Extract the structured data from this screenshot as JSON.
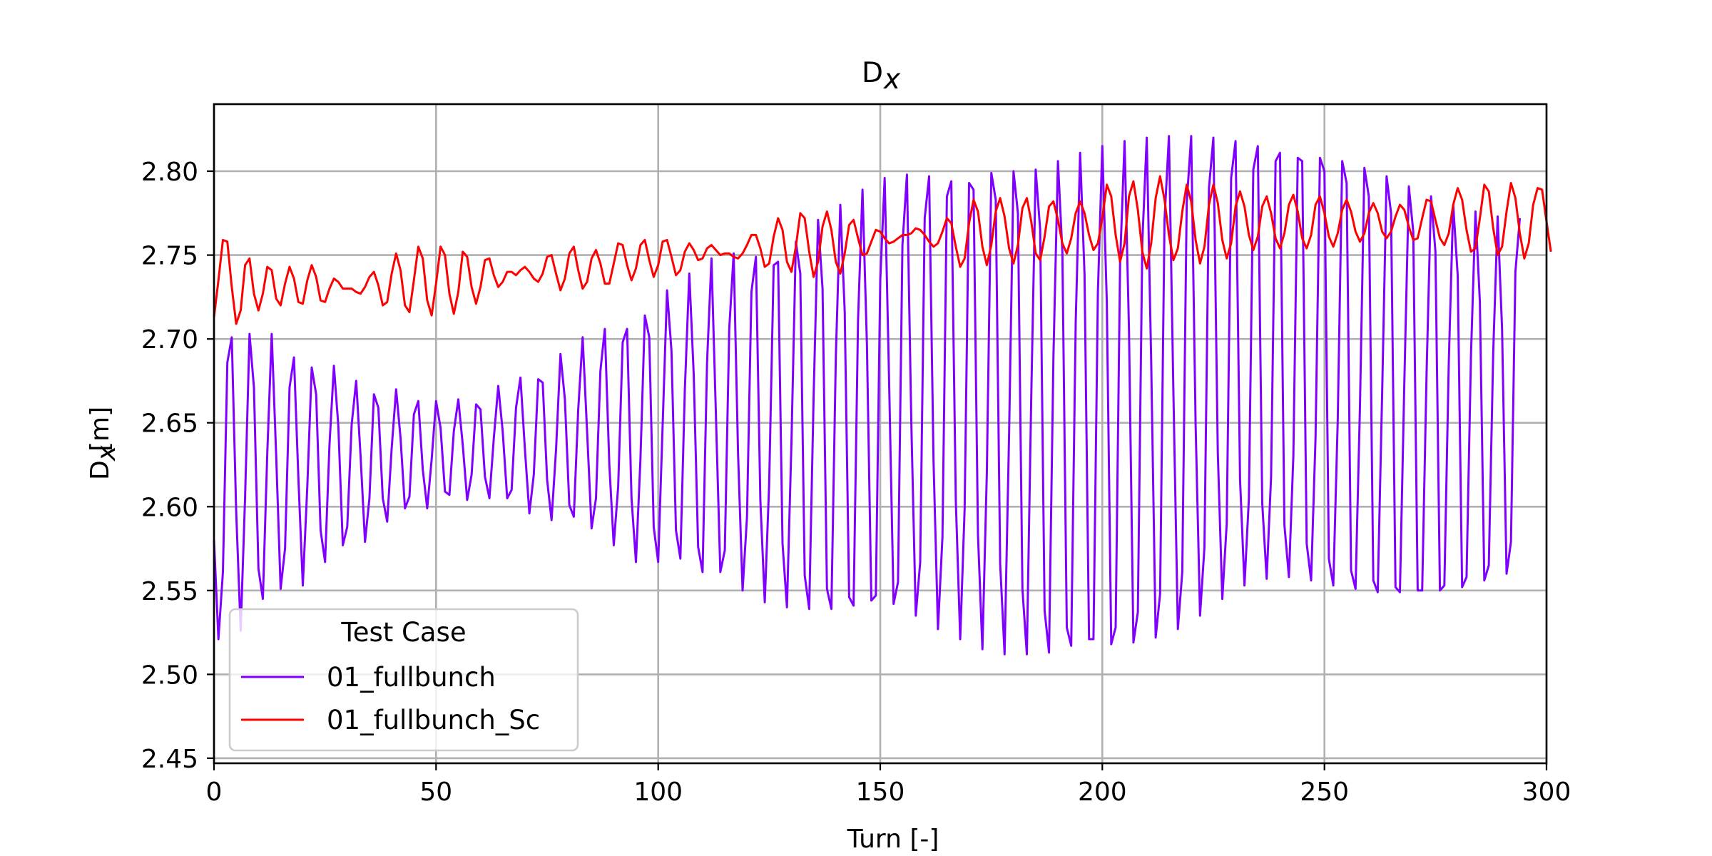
{
  "chart_data": {
    "type": "line",
    "title": "D",
    "title_subscript": "x",
    "xlabel": "Turn [-]",
    "ylabel": "D",
    "ylabel_subscript": "x",
    "ylabel_unit": " [m]",
    "xlim": [
      0,
      300
    ],
    "ylim": [
      2.447,
      2.84
    ],
    "x_ticks": [
      0,
      50,
      100,
      150,
      200,
      250,
      300
    ],
    "x_tick_labels": [
      "0",
      "50",
      "100",
      "150",
      "200",
      "250",
      "300"
    ],
    "y_ticks": [
      2.45,
      2.5,
      2.55,
      2.6,
      2.65,
      2.7,
      2.75,
      2.8
    ],
    "y_tick_labels": [
      "2.45",
      "2.50",
      "2.55",
      "2.60",
      "2.65",
      "2.70",
      "2.75",
      "2.80"
    ],
    "grid": true,
    "legend": {
      "title": "Test Case",
      "placement": "lower-left"
    },
    "x_start": 0,
    "x_step": 1,
    "series": [
      {
        "name": "01_fullbunch",
        "color": "#8000ff",
        "values": [
          2.58,
          2.521,
          2.561,
          2.686,
          2.701,
          2.597,
          2.526,
          2.606,
          2.703,
          2.671,
          2.563,
          2.545,
          2.632,
          2.703,
          2.63,
          2.551,
          2.575,
          2.671,
          2.689,
          2.617,
          2.553,
          2.612,
          2.683,
          2.667,
          2.586,
          2.567,
          2.637,
          2.684,
          2.648,
          2.577,
          2.588,
          2.649,
          2.675,
          2.63,
          2.579,
          2.605,
          2.667,
          2.659,
          2.605,
          2.591,
          2.635,
          2.67,
          2.641,
          2.599,
          2.606,
          2.655,
          2.663,
          2.622,
          2.599,
          2.628,
          2.663,
          2.647,
          2.609,
          2.607,
          2.645,
          2.664,
          2.637,
          2.604,
          2.619,
          2.661,
          2.658,
          2.618,
          2.605,
          2.641,
          2.672,
          2.645,
          2.605,
          2.61,
          2.659,
          2.677,
          2.634,
          2.596,
          2.619,
          2.676,
          2.674,
          2.616,
          2.592,
          2.634,
          2.691,
          2.664,
          2.601,
          2.594,
          2.658,
          2.701,
          2.645,
          2.587,
          2.605,
          2.681,
          2.706,
          2.625,
          2.577,
          2.612,
          2.698,
          2.706,
          2.605,
          2.567,
          2.628,
          2.714,
          2.701,
          2.588,
          2.567,
          2.648,
          2.729,
          2.693,
          2.586,
          2.569,
          2.669,
          2.739,
          2.679,
          2.576,
          2.561,
          2.686,
          2.748,
          2.655,
          2.561,
          2.574,
          2.706,
          2.751,
          2.631,
          2.55,
          2.594,
          2.728,
          2.749,
          2.604,
          2.543,
          2.614,
          2.744,
          2.746,
          2.578,
          2.54,
          2.638,
          2.758,
          2.739,
          2.559,
          2.539,
          2.666,
          2.771,
          2.73,
          2.551,
          2.539,
          2.689,
          2.78,
          2.716,
          2.546,
          2.541,
          2.712,
          2.789,
          2.697,
          2.544,
          2.547,
          2.735,
          2.796,
          2.673,
          2.542,
          2.555,
          2.756,
          2.798,
          2.649,
          2.535,
          2.567,
          2.772,
          2.797,
          2.627,
          2.527,
          2.582,
          2.785,
          2.794,
          2.604,
          2.521,
          2.599,
          2.793,
          2.789,
          2.583,
          2.515,
          2.62,
          2.799,
          2.783,
          2.566,
          2.512,
          2.643,
          2.8,
          2.775,
          2.551,
          2.512,
          2.666,
          2.801,
          2.765,
          2.538,
          2.513,
          2.69,
          2.806,
          2.752,
          2.528,
          2.517,
          2.71,
          2.811,
          2.738,
          2.521,
          2.521,
          2.728,
          2.815,
          2.722,
          2.518,
          2.528,
          2.745,
          2.818,
          2.705,
          2.519,
          2.537,
          2.758,
          2.82,
          2.687,
          2.522,
          2.548,
          2.771,
          2.821,
          2.667,
          2.527,
          2.561,
          2.781,
          2.821,
          2.649,
          2.535,
          2.576,
          2.79,
          2.82,
          2.632,
          2.545,
          2.59,
          2.796,
          2.818,
          2.616,
          2.553,
          2.605,
          2.801,
          2.815,
          2.602,
          2.557,
          2.618,
          2.806,
          2.811,
          2.589,
          2.558,
          2.63,
          2.808,
          2.806,
          2.578,
          2.556,
          2.641,
          2.808,
          2.8,
          2.569,
          2.553,
          2.651,
          2.806,
          2.793,
          2.562,
          2.551,
          2.66,
          2.802,
          2.785,
          2.556,
          2.549,
          2.668,
          2.797,
          2.775,
          2.552,
          2.549,
          2.674,
          2.791,
          2.764,
          2.55,
          2.55,
          2.68,
          2.785,
          2.752,
          2.55,
          2.553,
          2.686,
          2.78,
          2.738,
          2.552,
          2.558,
          2.69,
          2.776,
          2.722,
          2.556,
          2.565,
          2.692,
          2.773,
          2.706,
          2.56,
          2.579,
          2.74,
          2.772
        ]
      },
      {
        "name": "01_fullbunch_Sc",
        "color": "#ff0000",
        "values": [
          2.713,
          2.735,
          2.759,
          2.758,
          2.731,
          2.709,
          2.717,
          2.744,
          2.748,
          2.727,
          2.717,
          2.727,
          2.743,
          2.741,
          2.724,
          2.72,
          2.733,
          2.743,
          2.736,
          2.722,
          2.721,
          2.735,
          2.744,
          2.737,
          2.723,
          2.722,
          2.73,
          2.736,
          2.734,
          2.73,
          2.73,
          2.73,
          2.728,
          2.727,
          2.731,
          2.737,
          2.74,
          2.732,
          2.72,
          2.722,
          2.739,
          2.751,
          2.741,
          2.72,
          2.716,
          2.735,
          2.755,
          2.748,
          2.723,
          2.714,
          2.733,
          2.755,
          2.75,
          2.727,
          2.715,
          2.728,
          2.752,
          2.749,
          2.731,
          2.721,
          2.731,
          2.747,
          2.748,
          2.738,
          2.731,
          2.734,
          2.74,
          2.74,
          2.738,
          2.741,
          2.743,
          2.74,
          2.736,
          2.734,
          2.739,
          2.749,
          2.75,
          2.739,
          2.729,
          2.736,
          2.751,
          2.755,
          2.741,
          2.73,
          2.734,
          2.748,
          2.753,
          2.745,
          2.733,
          2.733,
          2.745,
          2.757,
          2.756,
          2.744,
          2.735,
          2.742,
          2.756,
          2.759,
          2.747,
          2.737,
          2.744,
          2.758,
          2.759,
          2.749,
          2.738,
          2.741,
          2.752,
          2.757,
          2.753,
          2.747,
          2.748,
          2.754,
          2.756,
          2.753,
          2.75,
          2.751,
          2.751,
          2.749,
          2.748,
          2.751,
          2.756,
          2.762,
          2.762,
          2.754,
          2.743,
          2.745,
          2.761,
          2.772,
          2.765,
          2.746,
          2.74,
          2.755,
          2.775,
          2.772,
          2.752,
          2.737,
          2.746,
          2.767,
          2.776,
          2.765,
          2.746,
          2.739,
          2.751,
          2.768,
          2.771,
          2.76,
          2.75,
          2.751,
          2.758,
          2.765,
          2.764,
          2.76,
          2.757,
          2.758,
          2.76,
          2.762,
          2.762,
          2.763,
          2.766,
          2.765,
          2.762,
          2.758,
          2.755,
          2.757,
          2.764,
          2.772,
          2.769,
          2.755,
          2.743,
          2.748,
          2.769,
          2.783,
          2.776,
          2.755,
          2.744,
          2.756,
          2.776,
          2.784,
          2.773,
          2.754,
          2.745,
          2.756,
          2.778,
          2.784,
          2.77,
          2.751,
          2.747,
          2.761,
          2.779,
          2.782,
          2.771,
          2.757,
          2.751,
          2.76,
          2.775,
          2.782,
          2.775,
          2.762,
          2.753,
          2.757,
          2.772,
          2.792,
          2.785,
          2.762,
          2.746,
          2.757,
          2.785,
          2.794,
          2.777,
          2.752,
          2.742,
          2.757,
          2.784,
          2.797,
          2.783,
          2.762,
          2.747,
          2.754,
          2.776,
          2.792,
          2.782,
          2.759,
          2.745,
          2.755,
          2.78,
          2.792,
          2.781,
          2.759,
          2.748,
          2.757,
          2.779,
          2.788,
          2.779,
          2.762,
          2.753,
          2.761,
          2.779,
          2.785,
          2.775,
          2.76,
          2.754,
          2.763,
          2.78,
          2.786,
          2.776,
          2.76,
          2.754,
          2.762,
          2.78,
          2.785,
          2.775,
          2.761,
          2.755,
          2.763,
          2.777,
          2.783,
          2.776,
          2.764,
          2.758,
          2.763,
          2.775,
          2.781,
          2.775,
          2.764,
          2.76,
          2.764,
          2.773,
          2.78,
          2.777,
          2.767,
          2.759,
          2.76,
          2.772,
          2.783,
          2.782,
          2.771,
          2.76,
          2.756,
          2.763,
          2.78,
          2.79,
          2.783,
          2.765,
          2.752,
          2.754,
          2.772,
          2.792,
          2.788,
          2.766,
          2.75,
          2.755,
          2.776,
          2.793,
          2.784,
          2.763,
          2.748,
          2.757,
          2.78,
          2.79,
          2.789,
          2.77,
          2.752
        ]
      }
    ]
  }
}
